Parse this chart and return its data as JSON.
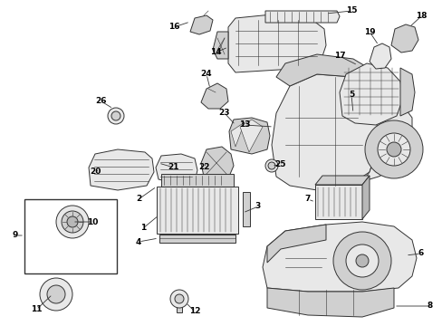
{
  "background_color": "#ffffff",
  "line_color": "#333333",
  "text_color": "#000000",
  "label_fontsize": 6.5,
  "fig_width": 4.89,
  "fig_height": 3.6,
  "dpi": 100
}
